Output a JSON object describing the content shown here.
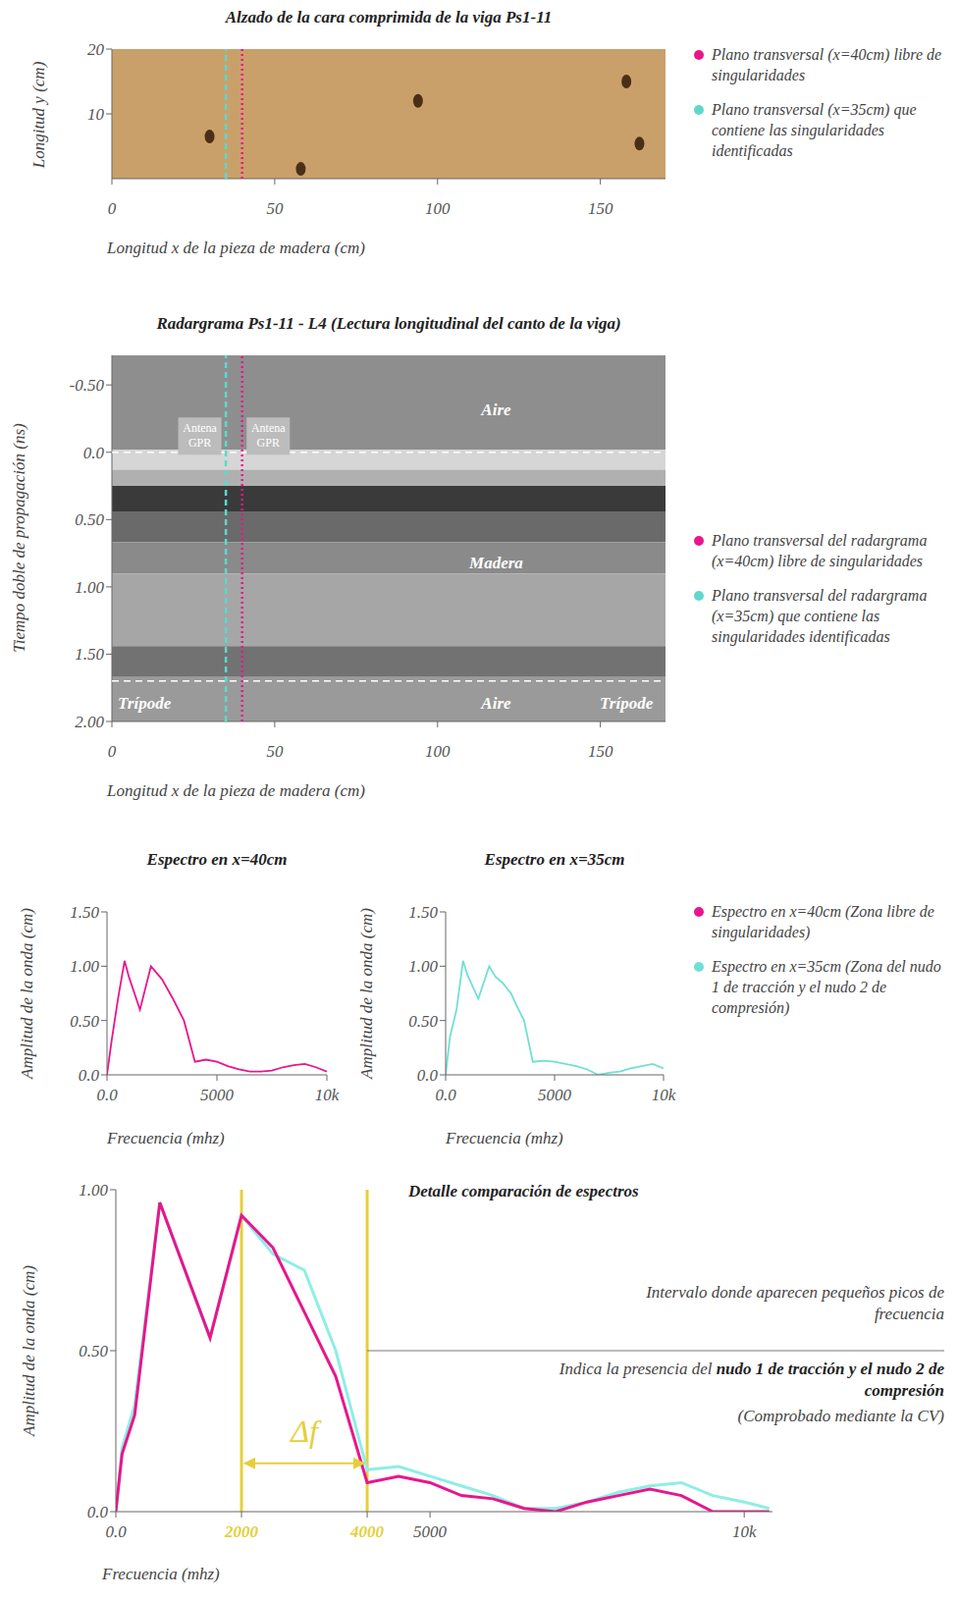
{
  "chart_data": [
    {
      "type": "image",
      "title": "Alzado de la cara comprimida de la viga Ps1-11",
      "x_label": "Longitud x de la pieza de madera (cm)",
      "y_label": "Longitud y (cm)",
      "xlim": [
        0,
        170
      ],
      "ylim": [
        0,
        20
      ],
      "xticks": [
        0,
        50,
        100,
        150
      ],
      "yticks": [
        10,
        20
      ],
      "knots": {
        "x": [
          30,
          58,
          94,
          158,
          162
        ],
        "y": [
          6.5,
          1.5,
          12,
          15,
          5.4
        ]
      },
      "reference_lines": [
        {
          "name": "Plano transversal (x=40cm) libre de singularidades",
          "x": 40,
          "color": "#e8168c",
          "line_style": "dotted"
        },
        {
          "name": "Plano transversal (x=35cm) que contiene las singularidades identificadas",
          "x": 35,
          "color": "#5fd8cc",
          "line_style": "dashed"
        }
      ],
      "legend": "right"
    },
    {
      "type": "radargram",
      "title": "Radargrama Ps1-11 - L4 (Lectura longitudinal del canto de la viga)",
      "x_label": "Longitud x de la pieza de madera (cm)",
      "y_label": "Tiempo doble de propagación (ns)",
      "xlim": [
        0,
        170
      ],
      "ylim": [
        -0.72,
        2.0
      ],
      "xticks": [
        0,
        50,
        100,
        150
      ],
      "yticks": [
        {
          "value": -0.5,
          "label": "-0.50"
        },
        {
          "value": 0,
          "label": "0.0"
        },
        {
          "value": 0.5,
          "label": "0.50"
        },
        {
          "value": 1,
          "label": "1.00"
        },
        {
          "value": 1.5,
          "label": "1.50"
        },
        {
          "value": 2,
          "label": "2.00"
        }
      ],
      "bands": [
        {
          "from": -0.72,
          "to": -0.02,
          "color": "#8e8e8e"
        },
        {
          "from": -0.02,
          "to": 0.13,
          "color": "#d6d6d6"
        },
        {
          "from": 0.13,
          "to": 0.25,
          "color": "#b0b0b0"
        },
        {
          "from": 0.25,
          "to": 0.44,
          "color": "#3a3a3a"
        },
        {
          "from": 0.44,
          "to": 0.67,
          "color": "#6a6a6a"
        },
        {
          "from": 0.67,
          "to": 0.9,
          "color": "#8a8a8a"
        },
        {
          "from": 0.9,
          "to": 1.44,
          "color": "#a6a6a6"
        },
        {
          "from": 1.44,
          "to": 1.67,
          "color": "#727272"
        },
        {
          "from": 1.67,
          "to": 2.0,
          "color": "#9a9a9a"
        }
      ],
      "boundaries": [
        0,
        1.7
      ],
      "annotations": [
        {
          "text": "Aire",
          "x": 118,
          "y": -0.32
        },
        {
          "text": "Madera",
          "x": 118,
          "y": 0.82
        },
        {
          "text": "Aire",
          "x": 118,
          "y": 1.86
        },
        {
          "text": "Trípode",
          "x": 10,
          "y": 1.86
        },
        {
          "text": "Trípode",
          "x": 158,
          "y": 1.86
        }
      ],
      "antennas": [
        {
          "text": "Antena GPR",
          "x": 27,
          "y": -0.12
        },
        {
          "text": "Antena GPR",
          "x": 48,
          "y": -0.12
        }
      ],
      "reference_lines": [
        {
          "name": "Plano transversal del radargrama (x=40cm) libre de singularidades",
          "x": 40,
          "color": "#e8168c",
          "line_style": "dotted"
        },
        {
          "name": "Plano transversal del radargrama (x=35cm) que contiene las singularidades identificadas",
          "x": 35,
          "color": "#5fd8cc",
          "line_style": "dashed"
        }
      ],
      "legend": "right"
    },
    {
      "type": "line",
      "title": "Espectro en x=40cm",
      "x_label": "Frecuencia (mhz)",
      "y_label": "Amplitud de la onda (cm)",
      "xlim": [
        0,
        10000
      ],
      "ylim": [
        0,
        1.5
      ],
      "xticks": [
        {
          "value": 0,
          "label": "0.0"
        },
        5000,
        {
          "value": 10000,
          "label": "10k"
        }
      ],
      "yticks": [
        {
          "value": 0,
          "label": "0.0"
        },
        {
          "value": 0.5,
          "label": "0.50"
        },
        {
          "value": 1,
          "label": "1.00"
        },
        {
          "value": 1.5,
          "label": "1.50"
        }
      ],
      "x": [
        0,
        200,
        500,
        800,
        1000,
        1500,
        2000,
        2500,
        3000,
        3500,
        4000,
        4500,
        5000,
        5500,
        6000,
        6500,
        7000,
        7500,
        8000,
        8500,
        9000,
        9500,
        10000
      ],
      "series": [
        {
          "name": "Espectro en x=40cm (Zona libre de singularidades)",
          "color": "#e8168c",
          "values": [
            0,
            0.3,
            0.7,
            1.05,
            0.9,
            0.6,
            1.0,
            0.88,
            0.7,
            0.5,
            0.12,
            0.14,
            0.12,
            0.08,
            0.05,
            0.03,
            0.03,
            0.04,
            0.07,
            0.09,
            0.1,
            0.07,
            0.03
          ]
        }
      ],
      "legend": "right"
    },
    {
      "type": "line",
      "title": "Espectro en x=35cm",
      "x_label": "Frecuencia (mhz)",
      "y_label": "Amplitud de la onda (cm)",
      "xlim": [
        0,
        10000
      ],
      "ylim": [
        0,
        1.5
      ],
      "xticks": [
        {
          "value": 0,
          "label": "0.0"
        },
        5000,
        {
          "value": 10000,
          "label": "10k"
        }
      ],
      "yticks": [
        {
          "value": 0,
          "label": "0.0"
        },
        {
          "value": 0.5,
          "label": "0.50"
        },
        {
          "value": 1,
          "label": "1.00"
        },
        {
          "value": 1.5,
          "label": "1.50"
        }
      ],
      "x": [
        0,
        200,
        500,
        800,
        1000,
        1500,
        2000,
        2300,
        2600,
        3000,
        3300,
        3600,
        4000,
        4500,
        5000,
        5500,
        6000,
        6500,
        7000,
        7500,
        8000,
        8500,
        9000,
        9500,
        10000
      ],
      "series": [
        {
          "name": "Espectro en x=35cm (Zona del nudo 1 de tracción y el nudo 2 de compresión)",
          "color": "#6fe0d6",
          "values": [
            0,
            0.35,
            0.6,
            1.05,
            0.92,
            0.7,
            1.0,
            0.9,
            0.85,
            0.75,
            0.62,
            0.5,
            0.12,
            0.13,
            0.12,
            0.1,
            0.08,
            0.05,
            0.0,
            0.02,
            0.03,
            0.06,
            0.08,
            0.1,
            0.06
          ]
        }
      ],
      "legend": "right"
    },
    {
      "type": "line",
      "title": "Detalle comparación de espectros",
      "x_label": "Frecuencia (mhz)",
      "y_label": "Amplitud de la onda (cm)",
      "xlim": [
        0,
        10450
      ],
      "ylim": [
        0,
        1.0
      ],
      "xticks": [
        {
          "value": 0,
          "label": "0.0"
        },
        2000,
        4000,
        5000,
        {
          "value": 10000,
          "label": "10k"
        }
      ],
      "yticks": [
        {
          "value": 0,
          "label": "0.0"
        },
        {
          "value": 0.5,
          "label": "0.50"
        },
        {
          "value": 1,
          "label": "1.00"
        }
      ],
      "x": [
        0,
        100,
        300,
        700,
        1500,
        2000,
        2500,
        3000,
        3500,
        4000,
        4500,
        5000,
        5500,
        6000,
        6500,
        7000,
        7500,
        8000,
        8500,
        9000,
        9500,
        10000,
        10400
      ],
      "series": [
        {
          "color": "#8eeee6",
          "values": [
            0,
            0.2,
            0.33,
            0.96,
            0.54,
            0.92,
            0.8,
            0.75,
            0.5,
            0.13,
            0.14,
            0.11,
            0.08,
            0.05,
            0.01,
            0.01,
            0.03,
            0.06,
            0.08,
            0.09,
            0.05,
            0.03,
            0.01
          ]
        },
        {
          "color": "#e8168c",
          "values": [
            0,
            0.18,
            0.3,
            0.96,
            0.54,
            0.92,
            0.82,
            0.62,
            0.42,
            0.09,
            0.11,
            0.09,
            0.05,
            0.04,
            0.01,
            0,
            0.03,
            0.05,
            0.07,
            0.05,
            0.0,
            0.0,
            0.0
          ]
        }
      ],
      "highlight": {
        "from": 2000,
        "to": 4000,
        "label": "Δf",
        "color": "#e6cf3a"
      },
      "annotations": [
        {
          "segments": [
            {
              "text": "Intervalo donde aparecen pequeños picos de frecuencia"
            }
          ]
        },
        {
          "segments": [
            {
              "text": "Indica la presencia del "
            },
            {
              "text": "nudo 1 de tracción y el nudo 2 de compresión",
              "bold": true
            }
          ]
        },
        {
          "segments": [
            {
              "text": "(Comprobado mediante la CV)"
            }
          ]
        }
      ]
    }
  ]
}
